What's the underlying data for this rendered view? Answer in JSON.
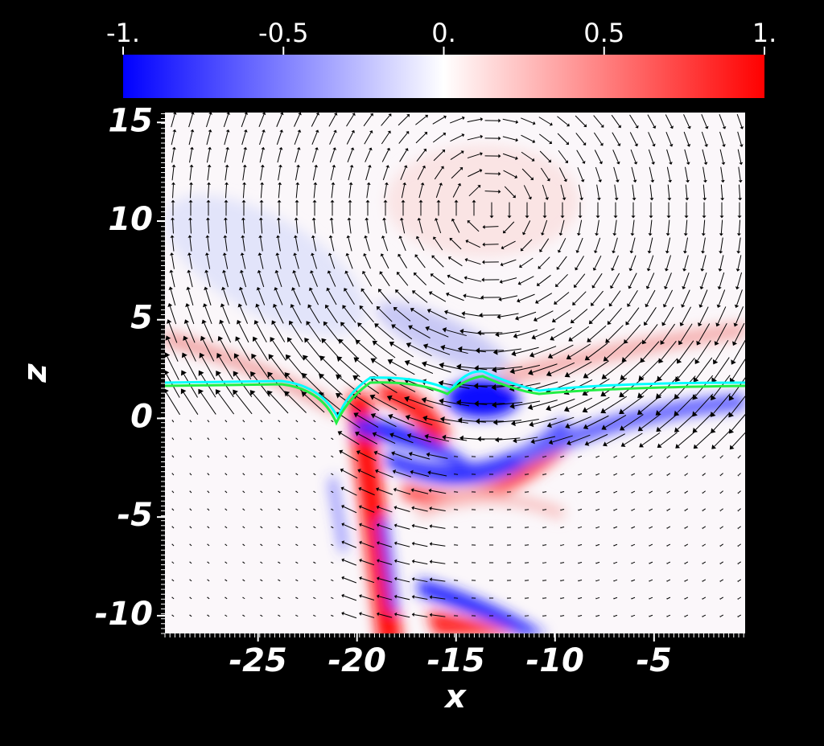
{
  "chart_data": {
    "type": "heatmap",
    "x_label": "x",
    "y_label": "z",
    "xlim": [
      -29.7,
      -0.4
    ],
    "xticks": [
      -25,
      -20,
      -15,
      -10,
      -5
    ],
    "ylim": [
      -10.9,
      15.5
    ],
    "yticks": [
      -10,
      -5,
      0,
      5,
      10,
      15
    ],
    "colorbar": {
      "lim": [
        -1,
        1
      ],
      "ticks": [
        {
          "value": -1,
          "label": "-1."
        },
        -0.5,
        {
          "value": 0,
          "label": "0."
        },
        0.5,
        {
          "value": 1,
          "label": "1."
        }
      ],
      "colormap": [
        "#0000ff",
        "#ffffff",
        "#ff0000"
      ]
    }
  }
}
